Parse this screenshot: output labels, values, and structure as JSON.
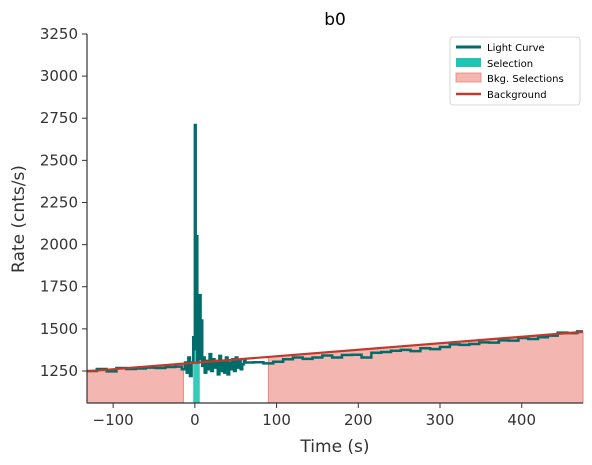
{
  "chart_data": {
    "type": "line",
    "title": "b0",
    "xlabel": "Time (s)",
    "ylabel": "Rate (cnts/s)",
    "xlim": [
      -132,
      475
    ],
    "ylim": [
      1060,
      3250
    ],
    "xticks": [
      -100,
      0,
      100,
      200,
      300,
      400
    ],
    "yticks": [
      1250,
      1500,
      1750,
      2000,
      2250,
      2500,
      2750,
      3000,
      3250
    ],
    "xtick_labels": [
      "−100",
      "0",
      "100",
      "200",
      "300",
      "400"
    ],
    "ytick_labels": [
      "1250",
      "1500",
      "1750",
      "2000",
      "2250",
      "2500",
      "2750",
      "3000",
      "3250"
    ],
    "grid": false,
    "legend_position": "top-right",
    "colors": {
      "light_curve": "#006d6b",
      "selection": "#1fc4b4",
      "bkg_selection": "#f4b6b1",
      "background": "#c0392b"
    },
    "series": [
      {
        "name": "Light Curve",
        "type": "step",
        "x": [
          -132,
          -120,
          -108,
          -96,
          -84,
          -72,
          -60,
          -48,
          -36,
          -24,
          -16,
          -12,
          -10,
          -8,
          -6,
          -4,
          -2,
          -1,
          0,
          1,
          2,
          3,
          4,
          5,
          6,
          7,
          8,
          9,
          10,
          12,
          14,
          16,
          18,
          20,
          22,
          24,
          26,
          28,
          30,
          32,
          34,
          36,
          38,
          40,
          42,
          44,
          46,
          48,
          50,
          52,
          54,
          56,
          58,
          60,
          62,
          72,
          84,
          96,
          108,
          120,
          132,
          144,
          156,
          168,
          180,
          192,
          204,
          216,
          228,
          240,
          252,
          264,
          276,
          288,
          300,
          312,
          324,
          336,
          348,
          360,
          372,
          384,
          396,
          408,
          420,
          432,
          444,
          456,
          468,
          475
        ],
        "y": [
          1250,
          1262,
          1248,
          1268,
          1262,
          1265,
          1270,
          1268,
          1274,
          1276,
          1260,
          1300,
          1240,
          1330,
          1220,
          1300,
          1450,
          1380,
          2710,
          1420,
          2050,
          1300,
          1500,
          1390,
          1700,
          1320,
          1550,
          1280,
          1330,
          1240,
          1310,
          1260,
          1350,
          1250,
          1320,
          1270,
          1310,
          1230,
          1340,
          1250,
          1300,
          1240,
          1330,
          1230,
          1300,
          1260,
          1320,
          1250,
          1330,
          1270,
          1310,
          1260,
          1290,
          1320,
          1300,
          1302,
          1295,
          1305,
          1320,
          1330,
          1322,
          1330,
          1342,
          1330,
          1345,
          1346,
          1330,
          1358,
          1363,
          1370,
          1375,
          1368,
          1385,
          1380,
          1392,
          1408,
          1405,
          1410,
          1420,
          1418,
          1432,
          1430,
          1446,
          1440,
          1450,
          1460,
          1478,
          1475,
          1485,
          1460
        ]
      },
      {
        "name": "Selection",
        "type": "fill",
        "x": [
          -2,
          0,
          1,
          2,
          3,
          4,
          5,
          6
        ],
        "y": [
          1060,
          1060,
          1060,
          1060,
          1060,
          1060,
          1060,
          1060
        ]
      },
      {
        "name": "Bkg. Selections",
        "type": "fill",
        "ranges": [
          [
            -132,
            -14
          ],
          [
            90,
            475
          ]
        ]
      },
      {
        "name": "Background",
        "type": "line",
        "x": [
          -132,
          475
        ],
        "y": [
          1248,
          1482
        ]
      }
    ]
  }
}
